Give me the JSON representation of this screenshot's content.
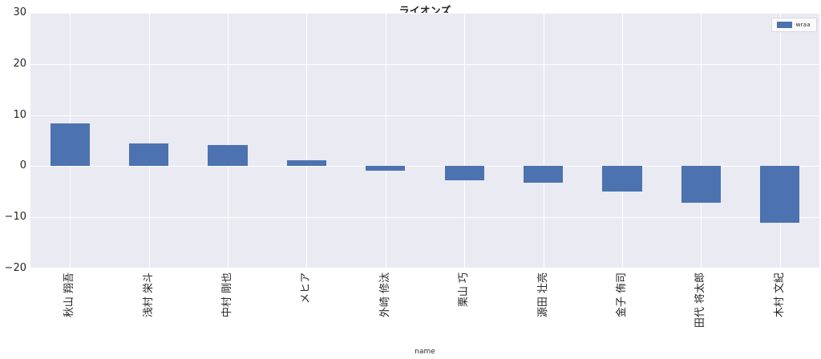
{
  "figure": {
    "title": "ライオンズ"
  },
  "chart_data": {
    "type": "bar",
    "title": "ライオンズ",
    "categories": [
      "秋山 翔吾",
      "浅村 栄斗",
      "中村 剛也",
      "メヒア",
      "外崎 修汰",
      "栗山 巧",
      "源田 壮亮",
      "金子 侑司",
      "田代 将太郎",
      "木村 文紀"
    ],
    "series": [
      {
        "name": "wraa",
        "values": [
          8.3,
          4.4,
          4.1,
          1.2,
          -0.9,
          -2.8,
          -3.3,
          -5.0,
          -7.1,
          -11.0
        ]
      }
    ],
    "xlabel": "name",
    "ylabel": "",
    "ylim": [
      -20,
      30
    ],
    "yticks": [
      30,
      20,
      10,
      0,
      -10,
      -20
    ],
    "grid": true,
    "legend_position": "upper right",
    "colors": {
      "bar": "#4c72b0",
      "plot_bg": "#eaeaf2",
      "grid": "#ffffff",
      "text": "#262626",
      "figure_bg": "#ffffff"
    }
  }
}
